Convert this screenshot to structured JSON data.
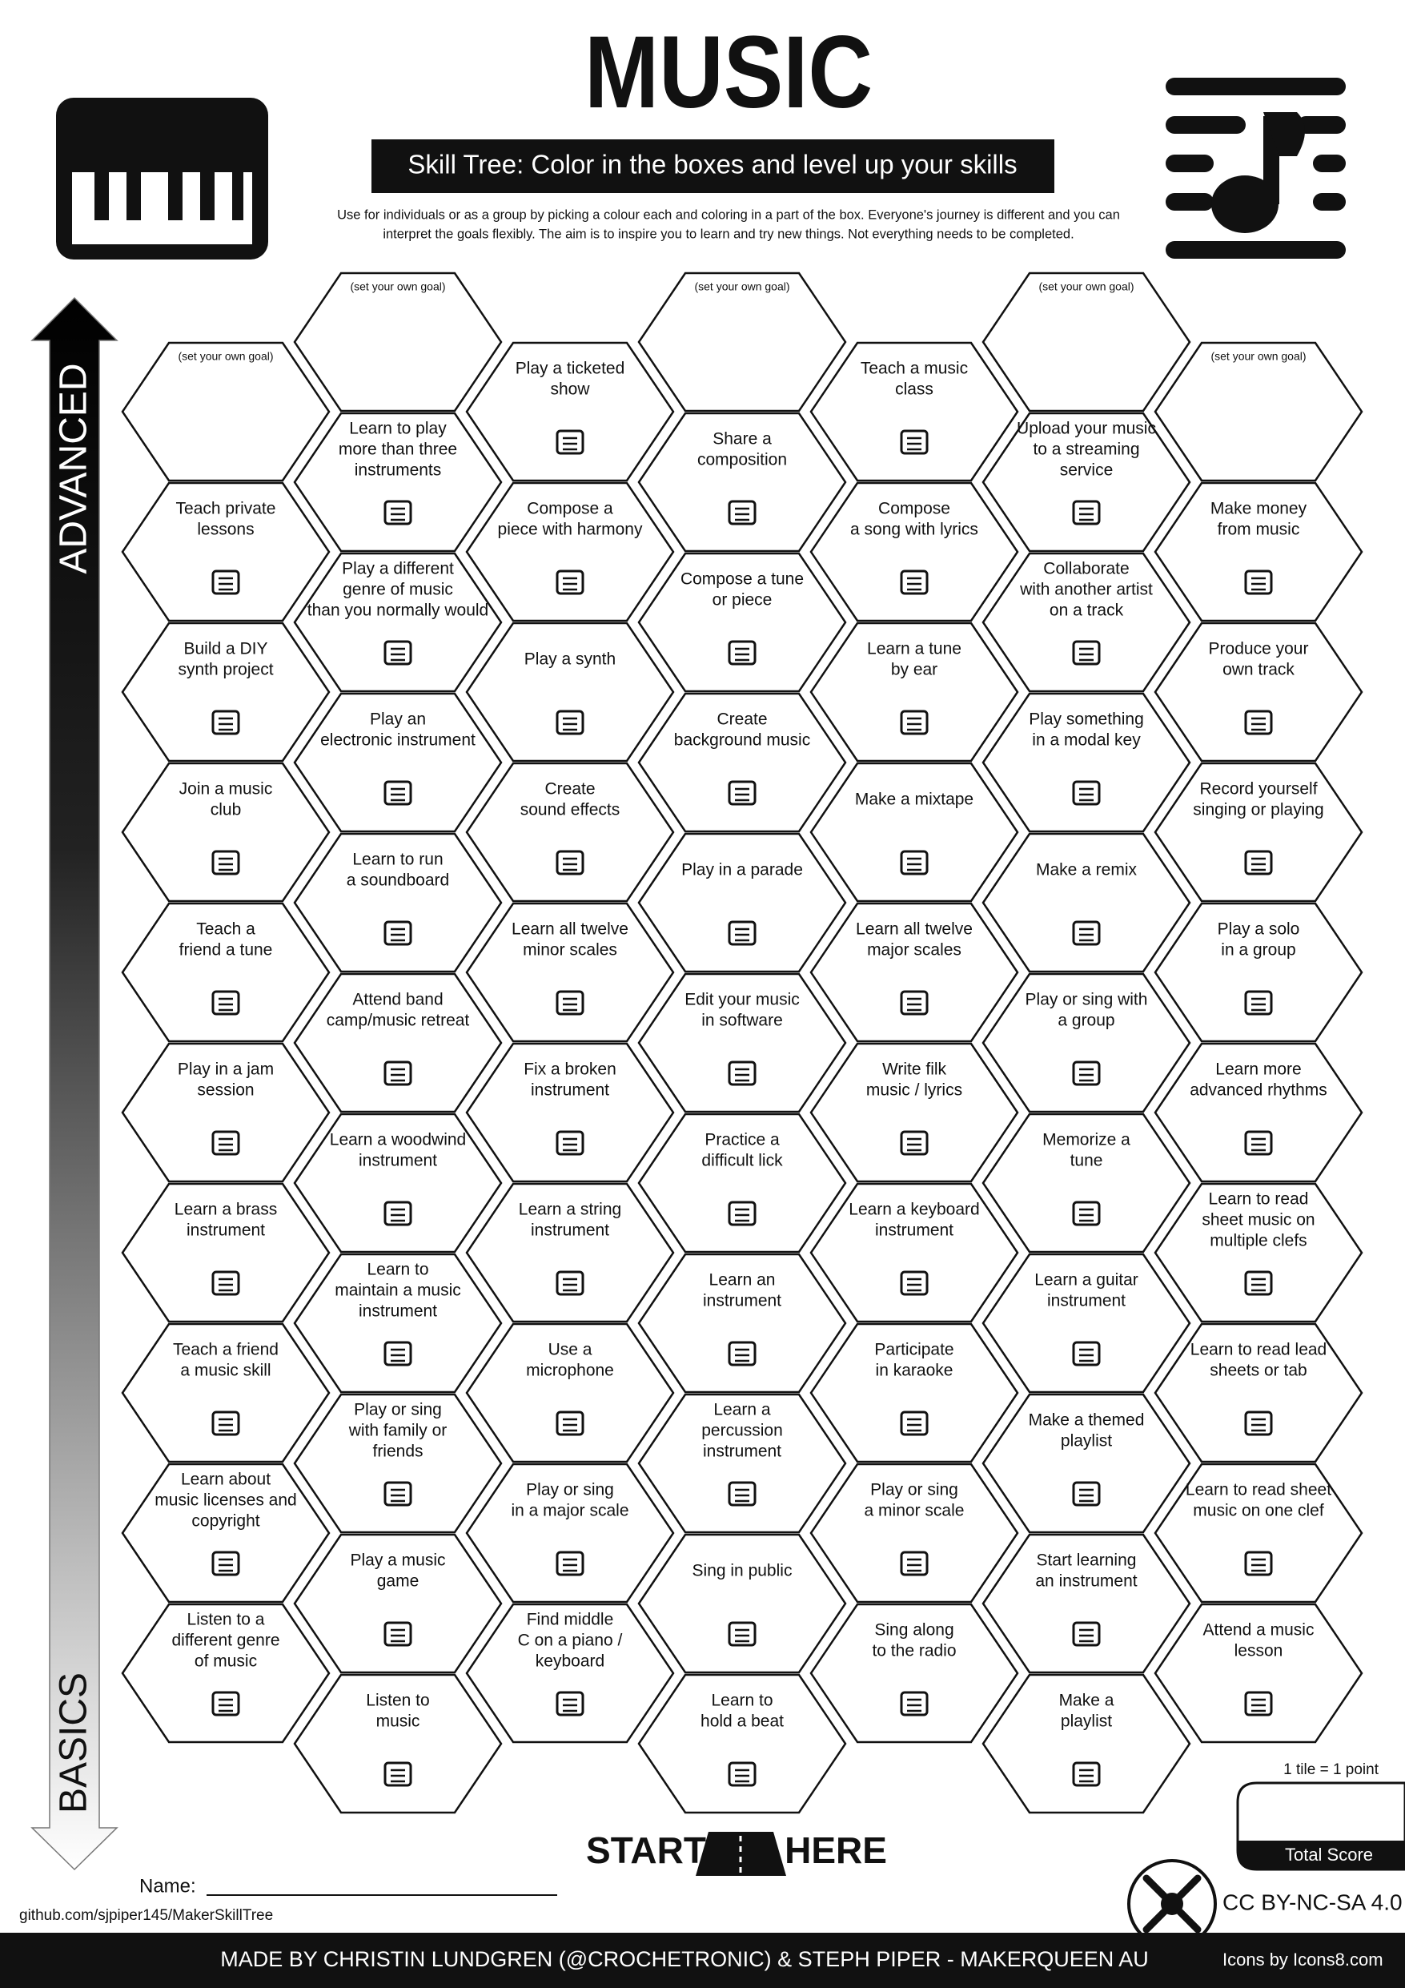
{
  "header": {
    "title": "MUSIC",
    "subtitle": "Skill Tree:  Color in the boxes and level up your skills",
    "description": [
      "Use for individuals or as a group by picking a colour each and coloring in a part of the box.  Everyone's journey is different and you can",
      "interpret the goals flexibly.  The aim is to inspire you to learn and try new things. Not everything needs to be completed."
    ]
  },
  "axis": {
    "top": "ADVANCED",
    "bottom": "BASICS"
  },
  "columns": [
    {
      "goal": "(set your own goal)",
      "tiles": [
        {
          "lines": [
            "Teach private",
            "lessons"
          ]
        },
        {
          "lines": [
            "Build a DIY",
            "synth project"
          ]
        },
        {
          "lines": [
            "Join a music",
            "club"
          ]
        },
        {
          "lines": [
            "Teach a",
            "friend a tune"
          ]
        },
        {
          "lines": [
            "Play in a jam",
            "session"
          ]
        },
        {
          "lines": [
            "Learn a brass",
            "instrument"
          ]
        },
        {
          "lines": [
            "Teach a friend",
            "a music skill"
          ]
        },
        {
          "lines": [
            "Learn about",
            "music licenses and",
            "copyright"
          ]
        },
        {
          "lines": [
            "Listen to a",
            "different genre",
            "of music"
          ]
        }
      ]
    },
    {
      "goal": "(set your own goal)",
      "tiles": [
        {
          "lines": [
            "Learn to play",
            "more than three",
            "instruments"
          ]
        },
        {
          "lines": [
            "Play a different",
            "genre of music",
            "than you normally would"
          ]
        },
        {
          "lines": [
            "Play an",
            "electronic instrument"
          ]
        },
        {
          "lines": [
            "Learn to run",
            "a soundboard"
          ]
        },
        {
          "lines": [
            "Attend band",
            "camp/music retreat"
          ]
        },
        {
          "lines": [
            "Learn a woodwind",
            "instrument"
          ]
        },
        {
          "lines": [
            "Learn to",
            "maintain a music",
            "instrument"
          ]
        },
        {
          "lines": [
            "Play or sing",
            "with family or",
            "friends"
          ]
        },
        {
          "lines": [
            "Play a music",
            "game"
          ]
        },
        {
          "lines": [
            "Listen to",
            "music"
          ]
        }
      ]
    },
    {
      "tiles": [
        {
          "lines": [
            "Play a ticketed",
            "show"
          ]
        },
        {
          "lines": [
            "Compose a",
            "piece with harmony"
          ]
        },
        {
          "lines": [
            "Play a synth"
          ]
        },
        {
          "lines": [
            "Create",
            "sound effects"
          ]
        },
        {
          "lines": [
            "Learn all twelve",
            "minor scales"
          ]
        },
        {
          "lines": [
            "Fix a broken",
            "instrument"
          ]
        },
        {
          "lines": [
            "Learn a string",
            "instrument"
          ]
        },
        {
          "lines": [
            "Use a",
            "microphone"
          ]
        },
        {
          "lines": [
            "Play or sing",
            "in a major scale"
          ]
        },
        {
          "lines": [
            "Find middle",
            "C on a piano /",
            "keyboard"
          ]
        }
      ]
    },
    {
      "goal": "(set your own goal)",
      "tiles": [
        {
          "lines": [
            "Share a",
            "composition"
          ]
        },
        {
          "lines": [
            "Compose a tune",
            "or piece"
          ]
        },
        {
          "lines": [
            "Create",
            "background music"
          ]
        },
        {
          "lines": [
            "Play in a parade"
          ]
        },
        {
          "lines": [
            "Edit your music",
            "in software"
          ]
        },
        {
          "lines": [
            "Practice a",
            "difficult lick"
          ]
        },
        {
          "lines": [
            "Learn an",
            "instrument"
          ]
        },
        {
          "lines": [
            "Learn a",
            "percussion",
            "instrument"
          ]
        },
        {
          "lines": [
            "Sing in public"
          ]
        },
        {
          "lines": [
            "Learn to",
            "hold a beat"
          ]
        }
      ]
    },
    {
      "tiles": [
        {
          "lines": [
            "Teach a music",
            "class"
          ]
        },
        {
          "lines": [
            "Compose",
            "a song with lyrics"
          ]
        },
        {
          "lines": [
            "Learn a tune",
            "by ear"
          ]
        },
        {
          "lines": [
            "Make a mixtape"
          ]
        },
        {
          "lines": [
            "Learn all twelve",
            "major scales"
          ]
        },
        {
          "lines": [
            "Write filk",
            "music / lyrics"
          ]
        },
        {
          "lines": [
            "Learn a keyboard",
            "instrument"
          ]
        },
        {
          "lines": [
            "Participate",
            "in karaoke"
          ]
        },
        {
          "lines": [
            "Play or sing",
            "a minor scale"
          ]
        },
        {
          "lines": [
            "Sing along",
            "to the radio"
          ]
        }
      ]
    },
    {
      "goal": "(set your own goal)",
      "tiles": [
        {
          "lines": [
            "Upload your music",
            "to a streaming",
            "service"
          ]
        },
        {
          "lines": [
            "Collaborate",
            "with another artist",
            "on a track"
          ]
        },
        {
          "lines": [
            "Play something",
            "in a modal key"
          ]
        },
        {
          "lines": [
            "Make a remix"
          ]
        },
        {
          "lines": [
            "Play or sing with",
            "a group"
          ]
        },
        {
          "lines": [
            "Memorize a",
            "tune"
          ]
        },
        {
          "lines": [
            "Learn a guitar",
            "instrument"
          ]
        },
        {
          "lines": [
            "Make a themed",
            "playlist"
          ]
        },
        {
          "lines": [
            "Start learning",
            "an instrument"
          ]
        },
        {
          "lines": [
            "Make a",
            "playlist"
          ]
        }
      ]
    },
    {
      "goal": "(set your own goal)",
      "tiles": [
        {
          "lines": [
            "Make money",
            "from music"
          ]
        },
        {
          "lines": [
            "Produce your",
            "own track"
          ]
        },
        {
          "lines": [
            "Record yourself",
            "singing or playing"
          ]
        },
        {
          "lines": [
            "Play a solo",
            "in a group"
          ]
        },
        {
          "lines": [
            "Learn more",
            "advanced rhythms"
          ]
        },
        {
          "lines": [
            "Learn to read",
            "sheet music on",
            "multiple clefs"
          ]
        },
        {
          "lines": [
            "Learn to read lead",
            "sheets or tab"
          ]
        },
        {
          "lines": [
            "Learn to read sheet",
            "music on one clef"
          ]
        },
        {
          "lines": [
            "Attend a music",
            "lesson"
          ]
        }
      ]
    }
  ],
  "footer": {
    "start": "START",
    "here": "HERE",
    "name_label": "Name:",
    "repo": "github.com/sjpiper145/MakerSkillTree",
    "points_note": "1 tile = 1 point",
    "total_score": "Total Score",
    "license": "CC BY-NC-SA 4.0",
    "credits": "MADE BY CHRISTIN LUNDGREN (@CROCHETRONIC) & STEPH PIPER  -  MAKERQUEEN AU",
    "icons_credit": "Icons by Icons8.com"
  }
}
